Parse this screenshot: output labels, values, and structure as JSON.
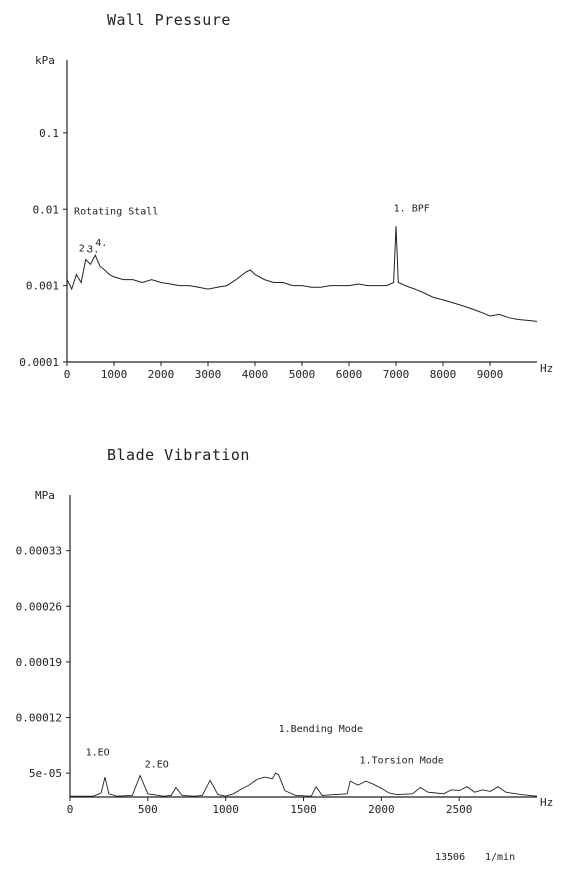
{
  "chart_data": [
    {
      "type": "line",
      "title": "Wall Pressure",
      "ylabel": "kPa",
      "xlabel": "Hz",
      "yscale": "log",
      "ylim": [
        0.0001,
        0.9
      ],
      "xlim": [
        0,
        10000
      ],
      "x_ticks": [
        0,
        1000,
        2000,
        3000,
        4000,
        5000,
        6000,
        7000,
        8000,
        9000
      ],
      "x_tick_labels": [
        "0",
        "1000",
        "2000",
        "3000",
        "4000",
        "5000",
        "6000",
        "7000",
        "8000",
        "9000"
      ],
      "y_ticks": [
        0.0001,
        0.001,
        0.01,
        0.1
      ],
      "y_tick_labels": [
        "0.0001",
        "0.001",
        "0.01",
        "0.1"
      ],
      "grid": false,
      "series": [
        {
          "x": [
            0,
            100,
            200,
            300,
            400,
            500,
            600,
            700,
            800,
            900,
            1000,
            1200,
            1400,
            1600,
            1800,
            2000,
            2200,
            2400,
            2600,
            2800,
            3000,
            3200,
            3400,
            3600,
            3800,
            3900,
            4000,
            4200,
            4400,
            4600,
            4800,
            5000,
            5200,
            5400,
            5600,
            5800,
            6000,
            6200,
            6400,
            6600,
            6800,
            6950,
            7000,
            7050,
            7200,
            7400,
            7600,
            7800,
            8000,
            8200,
            8400,
            8600,
            8800,
            9000,
            9200,
            9400,
            9600,
            9800,
            10000
          ],
          "y": [
            0.0012,
            0.0009,
            0.0014,
            0.0011,
            0.0022,
            0.0019,
            0.0025,
            0.0018,
            0.0016,
            0.0014,
            0.0013,
            0.0012,
            0.0012,
            0.0011,
            0.0012,
            0.0011,
            0.00105,
            0.001,
            0.001,
            0.00095,
            0.0009,
            0.00095,
            0.001,
            0.0012,
            0.0015,
            0.0016,
            0.0014,
            0.0012,
            0.0011,
            0.0011,
            0.001,
            0.001,
            0.00095,
            0.00095,
            0.001,
            0.001,
            0.001,
            0.00105,
            0.001,
            0.001,
            0.001,
            0.0011,
            0.006,
            0.0011,
            0.001,
            0.0009,
            0.0008,
            0.0007,
            0.00065,
            0.0006,
            0.00055,
            0.0005,
            0.00045,
            0.0004,
            0.00042,
            0.00038,
            0.00036,
            0.00035,
            0.00034
          ]
        }
      ],
      "annotations": [
        {
          "text": "Rotating Stall",
          "x": 150,
          "y": 0.0085
        },
        {
          "text": "2.",
          "x": 250,
          "y": 0.0028
        },
        {
          "text": "3.",
          "x": 430,
          "y": 0.0027
        },
        {
          "text": "4.",
          "x": 600,
          "y": 0.0033
        },
        {
          "text": "1. BPF",
          "x": 6950,
          "y": 0.0093
        }
      ]
    },
    {
      "type": "line",
      "title": "Blade Vibration",
      "ylabel": "MPa",
      "xlabel": "Hz",
      "ylim": [
        2e-05,
        0.0004
      ],
      "xlim": [
        0,
        3000
      ],
      "x_ticks": [
        0,
        500,
        1000,
        1500,
        2000,
        2500
      ],
      "x_tick_labels": [
        "0",
        "500",
        "1000",
        "1500",
        "2000",
        "2500"
      ],
      "y_ticks": [
        5e-05,
        0.00012,
        0.00019,
        0.00026,
        0.00033
      ],
      "y_tick_labels": [
        "5e-05",
        "0.00012",
        "0.00019",
        "0.00026",
        "0.00033"
      ],
      "grid": false,
      "series": [
        {
          "x": [
            0,
            150,
            200,
            225,
            250,
            300,
            400,
            450,
            500,
            600,
            650,
            680,
            720,
            800,
            850,
            900,
            950,
            1000,
            1050,
            1100,
            1150,
            1200,
            1250,
            1300,
            1320,
            1340,
            1380,
            1450,
            1550,
            1580,
            1620,
            1700,
            1780,
            1800,
            1850,
            1900,
            1950,
            2000,
            2050,
            2100,
            2200,
            2250,
            2300,
            2350,
            2400,
            2450,
            2500,
            2550,
            2600,
            2650,
            2700,
            2750,
            2800,
            2900,
            3000
          ],
          "y": [
            2.1e-05,
            2.1e-05,
            2.5e-05,
            4.5e-05,
            2.4e-05,
            2.1e-05,
            2.2e-05,
            4.7e-05,
            2.4e-05,
            2.1e-05,
            2.2e-05,
            3.2e-05,
            2.2e-05,
            2.1e-05,
            2.2e-05,
            4.1e-05,
            2.3e-05,
            2.1e-05,
            2.4e-05,
            3e-05,
            3.5e-05,
            4.2e-05,
            4.5e-05,
            4.3e-05,
            5e-05,
            4.8e-05,
            2.8e-05,
            2.2e-05,
            2.1e-05,
            3.3e-05,
            2.2e-05,
            2.3e-05,
            2.4e-05,
            4e-05,
            3.5e-05,
            4e-05,
            3.6e-05,
            3.1e-05,
            2.5e-05,
            2.3e-05,
            2.4e-05,
            3.2e-05,
            2.6e-05,
            2.5e-05,
            2.4e-05,
            2.9e-05,
            2.8e-05,
            3.3e-05,
            2.6e-05,
            2.9e-05,
            2.7e-05,
            3.3e-05,
            2.6e-05,
            2.3e-05,
            2.1e-05
          ]
        }
      ],
      "annotations": [
        {
          "text": "1.EO",
          "x": 100,
          "y": 7.2e-05
        },
        {
          "text": "2.EO",
          "x": 480,
          "y": 5.7e-05
        },
        {
          "text": "1.Bending Mode",
          "x": 1340,
          "y": 0.000102
        },
        {
          "text": "1.Torsion Mode",
          "x": 1860,
          "y": 6.2e-05
        }
      ]
    }
  ],
  "footer": {
    "rpm_value": "13506",
    "rpm_unit": "1/min"
  }
}
